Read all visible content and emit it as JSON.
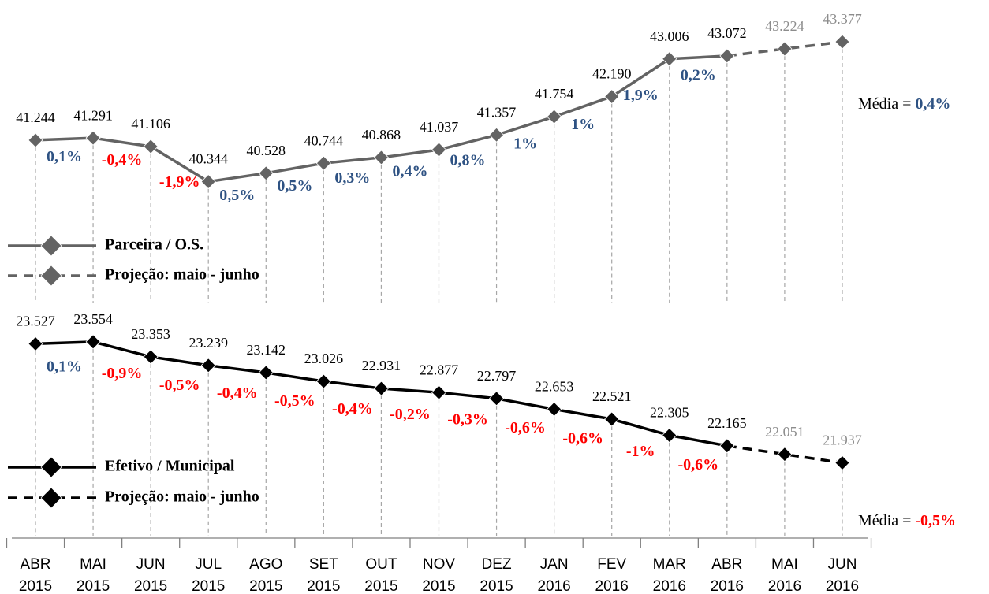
{
  "chart_data": [
    {
      "type": "line",
      "ylim": [
        39500,
        43600
      ],
      "series": [
        {
          "name": "Parceira / O.S.",
          "projection_name": "Projeção: maio - junho",
          "color": "#636363",
          "values": [
            41244,
            41291,
            41106,
            40344,
            40528,
            40744,
            40868,
            41037,
            41357,
            41754,
            42190,
            43006,
            43072,
            43224,
            43377
          ],
          "value_labels": [
            "41.244",
            "41.291",
            "41.106",
            "40.344",
            "40.528",
            "40.744",
            "40.868",
            "41.037",
            "41.357",
            "41.754",
            "42.190",
            "43.006",
            "43.072",
            "43.224",
            "43.377"
          ],
          "dashed": [
            false,
            false,
            false,
            false,
            false,
            false,
            false,
            false,
            false,
            false,
            false,
            false,
            false,
            true,
            true
          ],
          "changes": [
            0.1,
            -0.4,
            -1.9,
            0.5,
            0.5,
            0.3,
            0.4,
            0.8,
            1,
            1,
            1.9,
            0.2
          ],
          "change_labels": [
            "0,1%",
            "-0,4%",
            "-1,9%",
            "0,5%",
            "0,5%",
            "0,3%",
            "0,4%",
            "0,8%",
            "1%",
            "1%",
            "1,9%",
            "0,2%"
          ],
          "average_prefix": "Média = ",
          "average": 0.4,
          "average_label": "0,4%"
        }
      ],
      "positive_color": "#2e5283",
      "negative_color": "#ff0000",
      "label_color": "#000000",
      "projected_label_color": "#8c8c8c"
    },
    {
      "type": "line",
      "categories": [
        [
          "ABR",
          "2015"
        ],
        [
          "MAI",
          "2015"
        ],
        [
          "JUN",
          "2015"
        ],
        [
          "JUL",
          "2015"
        ],
        [
          "AGO",
          "2015"
        ],
        [
          "SET",
          "2015"
        ],
        [
          "OUT",
          "2015"
        ],
        [
          "NOV",
          "2015"
        ],
        [
          "DEZ",
          "2015"
        ],
        [
          "JAN",
          "2016"
        ],
        [
          "FEV",
          "2016"
        ],
        [
          "MAR",
          "2016"
        ],
        [
          "ABR",
          "2016"
        ],
        [
          "MAI",
          "2016"
        ],
        [
          "JUN",
          "2016"
        ]
      ],
      "ylim": [
        21700,
        23700
      ],
      "series": [
        {
          "name": "Efetivo / Municipal",
          "projection_name": "Projeção: maio - junho",
          "color": "#000000",
          "values": [
            23527,
            23554,
            23353,
            23239,
            23142,
            23026,
            22931,
            22877,
            22797,
            22653,
            22521,
            22305,
            22165,
            22051,
            21937
          ],
          "value_labels": [
            "23.527",
            "23.554",
            "23.353",
            "23.239",
            "23.142",
            "23.026",
            "22.931",
            "22.877",
            "22.797",
            "22.653",
            "22.521",
            "22.305",
            "22.165",
            "22.051",
            "21.937"
          ],
          "dashed": [
            false,
            false,
            false,
            false,
            false,
            false,
            false,
            false,
            false,
            false,
            false,
            false,
            false,
            true,
            true
          ],
          "changes": [
            0.1,
            -0.9,
            -0.5,
            -0.4,
            -0.5,
            -0.4,
            -0.2,
            -0.3,
            -0.6,
            -0.6,
            -1,
            -0.6
          ],
          "change_labels": [
            "0,1%",
            "-0,9%",
            "-0,5%",
            "-0,4%",
            "-0,5%",
            "-0,4%",
            "-0,2%",
            "-0,3%",
            "-0,6%",
            "-0,6%",
            "-1%",
            "-0,6%"
          ],
          "average_prefix": "Média = ",
          "average": -0.5,
          "average_label": "-0,5%"
        }
      ],
      "positive_color": "#2e5283",
      "negative_color": "#ff0000",
      "label_color": "#000000",
      "projected_label_color": "#8c8c8c"
    }
  ]
}
